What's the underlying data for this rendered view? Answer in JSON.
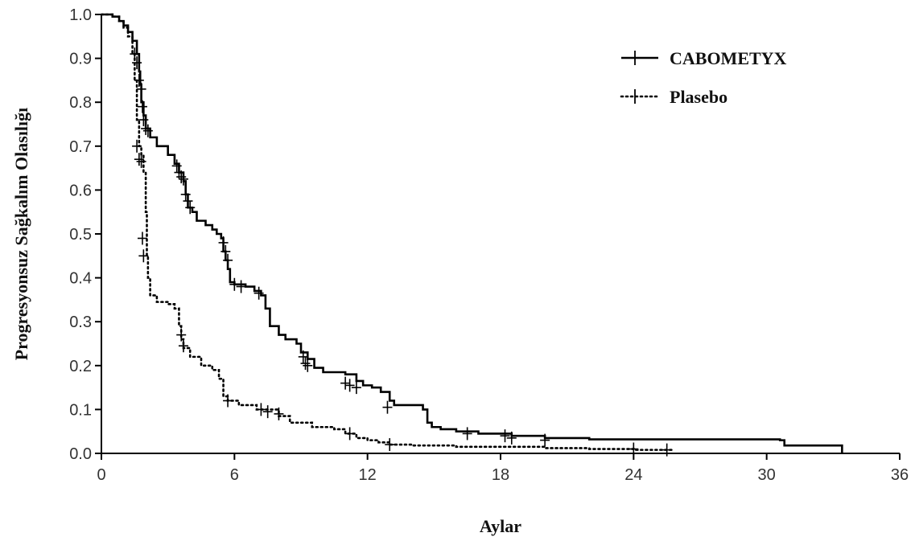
{
  "chart_data": {
    "type": "line",
    "title": "",
    "xlabel": "Aylar",
    "ylabel": "Progresyonsuz Sağkalım Olasılığı",
    "xlim": [
      0,
      36
    ],
    "ylim": [
      0,
      1
    ],
    "xticks": [
      "0",
      "6",
      "12",
      "18",
      "24",
      "30",
      "36"
    ],
    "yticks": [
      "0.0",
      "0.1",
      "0.2",
      "0.3",
      "0.4",
      "0.5",
      "0.6",
      "0.7",
      "0.8",
      "0.9",
      "1.0"
    ],
    "grid": false,
    "legend_position": "top-right",
    "series": [
      {
        "name": "CABOMETYX",
        "style": "solid",
        "color": "#000000",
        "points": [
          [
            0,
            1.0
          ],
          [
            0.5,
            0.995
          ],
          [
            0.8,
            0.985
          ],
          [
            1.0,
            0.975
          ],
          [
            1.2,
            0.96
          ],
          [
            1.4,
            0.94
          ],
          [
            1.6,
            0.91
          ],
          [
            1.7,
            0.87
          ],
          [
            1.75,
            0.84
          ],
          [
            1.8,
            0.8
          ],
          [
            1.9,
            0.77
          ],
          [
            2.0,
            0.74
          ],
          [
            2.2,
            0.72
          ],
          [
            2.5,
            0.7
          ],
          [
            3.0,
            0.68
          ],
          [
            3.3,
            0.66
          ],
          [
            3.5,
            0.64
          ],
          [
            3.7,
            0.62
          ],
          [
            3.8,
            0.59
          ],
          [
            3.9,
            0.56
          ],
          [
            4.1,
            0.55
          ],
          [
            4.3,
            0.53
          ],
          [
            4.7,
            0.52
          ],
          [
            5.0,
            0.51
          ],
          [
            5.2,
            0.5
          ],
          [
            5.4,
            0.49
          ],
          [
            5.5,
            0.46
          ],
          [
            5.6,
            0.44
          ],
          [
            5.7,
            0.42
          ],
          [
            5.8,
            0.39
          ],
          [
            6.0,
            0.385
          ],
          [
            6.5,
            0.38
          ],
          [
            6.9,
            0.37
          ],
          [
            7.2,
            0.36
          ],
          [
            7.4,
            0.33
          ],
          [
            7.6,
            0.29
          ],
          [
            8.0,
            0.27
          ],
          [
            8.3,
            0.26
          ],
          [
            8.8,
            0.25
          ],
          [
            9.0,
            0.23
          ],
          [
            9.3,
            0.215
          ],
          [
            9.6,
            0.195
          ],
          [
            10.0,
            0.185
          ],
          [
            11.0,
            0.18
          ],
          [
            11.5,
            0.165
          ],
          [
            11.8,
            0.155
          ],
          [
            12.2,
            0.15
          ],
          [
            12.6,
            0.14
          ],
          [
            13.0,
            0.12
          ],
          [
            13.2,
            0.11
          ],
          [
            14.5,
            0.1
          ],
          [
            14.7,
            0.07
          ],
          [
            14.9,
            0.06
          ],
          [
            15.3,
            0.055
          ],
          [
            16.0,
            0.05
          ],
          [
            17.0,
            0.045
          ],
          [
            18.5,
            0.04
          ],
          [
            20.0,
            0.035
          ],
          [
            22.0,
            0.032
          ],
          [
            30.6,
            0.03
          ],
          [
            30.8,
            0.018
          ],
          [
            33.3,
            0.018
          ],
          [
            33.4,
            0.0
          ]
        ],
        "censor_marks": [
          [
            1.5,
            0.91
          ],
          [
            1.6,
            0.89
          ],
          [
            1.7,
            0.85
          ],
          [
            1.8,
            0.83
          ],
          [
            1.85,
            0.79
          ],
          [
            1.9,
            0.76
          ],
          [
            2.0,
            0.74
          ],
          [
            2.1,
            0.735
          ],
          [
            3.4,
            0.655
          ],
          [
            3.5,
            0.64
          ],
          [
            3.6,
            0.63
          ],
          [
            3.7,
            0.625
          ],
          [
            3.8,
            0.59
          ],
          [
            3.9,
            0.575
          ],
          [
            4.0,
            0.56
          ],
          [
            5.5,
            0.48
          ],
          [
            5.6,
            0.46
          ],
          [
            5.7,
            0.44
          ],
          [
            6.0,
            0.385
          ],
          [
            6.3,
            0.38
          ],
          [
            7.1,
            0.365
          ],
          [
            9.1,
            0.22
          ],
          [
            9.2,
            0.205
          ],
          [
            9.3,
            0.2
          ],
          [
            11.0,
            0.16
          ],
          [
            11.2,
            0.155
          ],
          [
            11.5,
            0.15
          ],
          [
            12.9,
            0.105
          ],
          [
            16.5,
            0.045
          ],
          [
            18.2,
            0.04
          ],
          [
            18.5,
            0.035
          ],
          [
            20.0,
            0.03
          ]
        ]
      },
      {
        "name": "Plasebo",
        "style": "dotted",
        "color": "#000000",
        "points": [
          [
            0,
            1.0
          ],
          [
            0.5,
            0.995
          ],
          [
            0.8,
            0.985
          ],
          [
            1.0,
            0.97
          ],
          [
            1.2,
            0.95
          ],
          [
            1.4,
            0.91
          ],
          [
            1.5,
            0.85
          ],
          [
            1.6,
            0.76
          ],
          [
            1.7,
            0.7
          ],
          [
            1.8,
            0.68
          ],
          [
            1.9,
            0.64
          ],
          [
            2.0,
            0.55
          ],
          [
            2.05,
            0.45
          ],
          [
            2.1,
            0.4
          ],
          [
            2.2,
            0.36
          ],
          [
            2.5,
            0.345
          ],
          [
            3.0,
            0.34
          ],
          [
            3.3,
            0.33
          ],
          [
            3.5,
            0.29
          ],
          [
            3.6,
            0.26
          ],
          [
            3.7,
            0.24
          ],
          [
            4.0,
            0.22
          ],
          [
            4.5,
            0.2
          ],
          [
            5.0,
            0.19
          ],
          [
            5.3,
            0.17
          ],
          [
            5.5,
            0.13
          ],
          [
            5.7,
            0.12
          ],
          [
            6.2,
            0.11
          ],
          [
            7.0,
            0.1
          ],
          [
            8.0,
            0.085
          ],
          [
            8.5,
            0.07
          ],
          [
            9.5,
            0.06
          ],
          [
            10.5,
            0.055
          ],
          [
            11.0,
            0.045
          ],
          [
            11.5,
            0.035
          ],
          [
            12.0,
            0.03
          ],
          [
            12.5,
            0.025
          ],
          [
            13.0,
            0.02
          ],
          [
            14.0,
            0.018
          ],
          [
            16.0,
            0.015
          ],
          [
            20.0,
            0.012
          ],
          [
            22.0,
            0.01
          ],
          [
            24.0,
            0.008
          ],
          [
            25.8,
            0.006
          ]
        ],
        "censor_marks": [
          [
            1.6,
            0.7
          ],
          [
            1.7,
            0.67
          ],
          [
            1.8,
            0.665
          ],
          [
            1.85,
            0.49
          ],
          [
            1.9,
            0.45
          ],
          [
            3.6,
            0.27
          ],
          [
            3.7,
            0.245
          ],
          [
            5.7,
            0.12
          ],
          [
            7.2,
            0.1
          ],
          [
            7.5,
            0.095
          ],
          [
            8.0,
            0.09
          ],
          [
            11.2,
            0.045
          ],
          [
            13.0,
            0.02
          ],
          [
            24.0,
            0.01
          ],
          [
            25.5,
            0.008
          ]
        ]
      }
    ]
  }
}
